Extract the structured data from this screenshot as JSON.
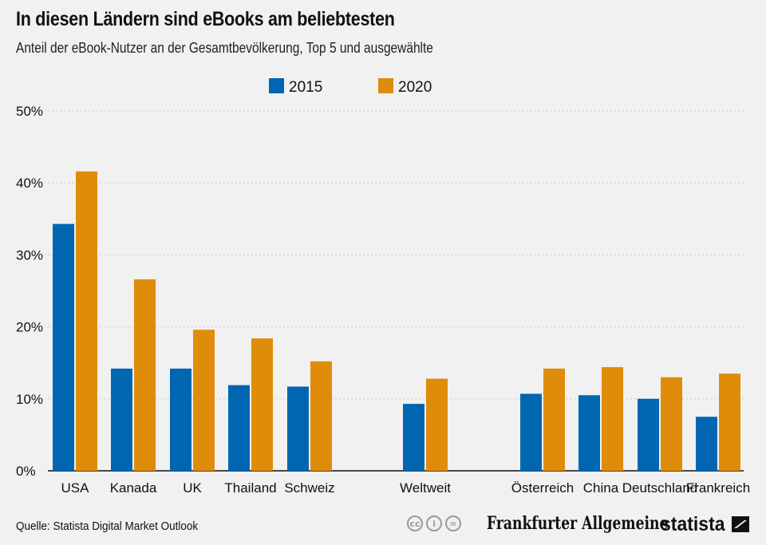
{
  "header": {
    "title": "In diesen Ländern sind eBooks am beliebtesten",
    "subtitle": "Anteil der eBook-Nutzer an der Gesamtbevölkerung, Top 5 und ausgewählte"
  },
  "colors": {
    "series_2015": "#0066b2",
    "series_2020": "#e08c0b",
    "grid": "#c8c8c8",
    "axis": "#111111"
  },
  "chart_data": {
    "type": "bar",
    "title": "In diesen Ländern sind eBooks am beliebtesten",
    "subtitle": "Anteil der eBook-Nutzer an der Gesamtbevölkerung, Top 5 und ausgewählte",
    "categories": [
      "USA",
      "Kanada",
      "UK",
      "Thailand",
      "Schweiz",
      "Weltweit",
      "Österreich",
      "China",
      "Deutschland",
      "Frankreich"
    ],
    "groups": [
      [
        0,
        1,
        2,
        3,
        4
      ],
      [
        5
      ],
      [
        6,
        7,
        8,
        9
      ]
    ],
    "series": [
      {
        "name": "2015",
        "values": [
          34.3,
          14.2,
          14.2,
          11.9,
          11.7,
          9.3,
          10.7,
          10.5,
          10.0,
          7.5
        ]
      },
      {
        "name": "2020",
        "values": [
          41.6,
          26.6,
          19.6,
          18.4,
          15.2,
          12.8,
          14.2,
          14.4,
          13.0,
          13.5
        ]
      }
    ],
    "ylim": [
      0,
      50
    ],
    "yticks": [
      "0%",
      "10%",
      "20%",
      "30%",
      "40%",
      "50%"
    ],
    "ytick_values": [
      0,
      10,
      20,
      30,
      40,
      50
    ],
    "xlabel": "",
    "ylabel": "",
    "grid": true,
    "legend": "top-center"
  },
  "footer": {
    "source": "Quelle: Statista Digital Market Outlook",
    "cc_icons": [
      "cc",
      "i",
      "="
    ],
    "publisher": "Frankfurter Allgemeine",
    "brand": "statista"
  }
}
